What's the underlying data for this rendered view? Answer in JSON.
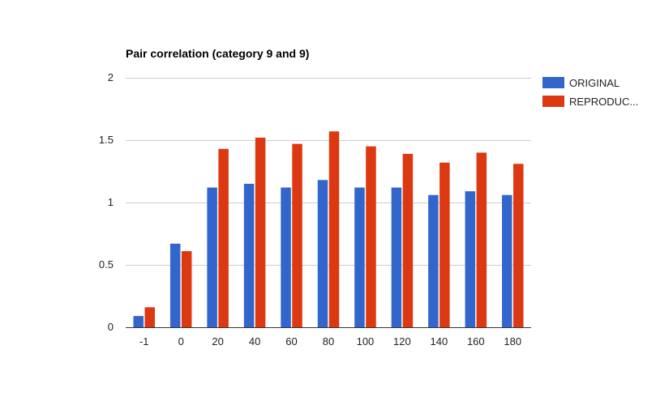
{
  "chart_data": {
    "type": "bar",
    "title": "Pair correlation (category 9 and 9)",
    "xlabel": "",
    "ylabel": "",
    "categories": [
      "-1",
      "0",
      "20",
      "40",
      "60",
      "80",
      "100",
      "120",
      "140",
      "160",
      "180"
    ],
    "series": [
      {
        "name": "ORIGINAL",
        "legend_label": "ORIGINAL",
        "color": "#3366cc",
        "values": [
          0.09,
          0.67,
          1.12,
          1.15,
          1.12,
          1.18,
          1.12,
          1.12,
          1.06,
          1.09,
          1.06
        ]
      },
      {
        "name": "REPRODUCED",
        "legend_label": "REPRODUC...",
        "color": "#dc3912",
        "values": [
          0.16,
          0.61,
          1.43,
          1.52,
          1.47,
          1.57,
          1.45,
          1.39,
          1.32,
          1.4,
          1.31
        ]
      }
    ],
    "ylim": [
      0,
      2
    ],
    "yticks": [
      0,
      0.5,
      1,
      1.5,
      2
    ],
    "ytick_labels": [
      "0",
      "0.5",
      "1",
      "1.5",
      "2"
    ],
    "grid": true,
    "legend_position": "right"
  }
}
